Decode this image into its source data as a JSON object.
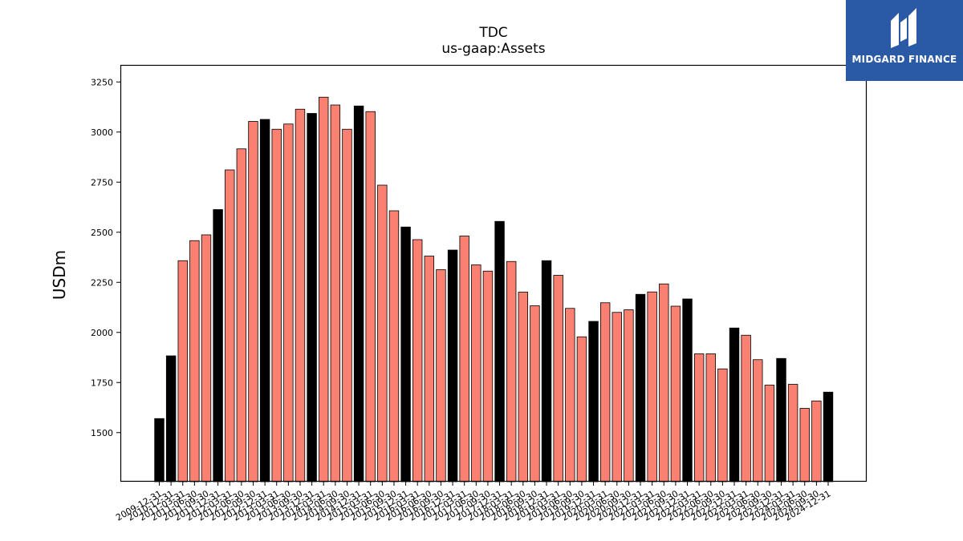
{
  "logo": {
    "text": "MIDGARD FINANCE"
  },
  "colors": {
    "highlight": "#000000",
    "normal": "#fa8072",
    "edge": "#000000"
  },
  "chart_data": {
    "type": "bar",
    "title": "TDC",
    "subtitle": "us-gaap:Assets",
    "ylabel": "USDm",
    "xlabel": "",
    "ylim": [
      1255,
      3335
    ],
    "yticks": [
      1500,
      1750,
      2000,
      2250,
      2500,
      2750,
      3000,
      3250
    ],
    "categories": [
      "2009-12-31",
      "2010-12-31",
      "2011-03-31",
      "2011-06-30",
      "2011-09-30",
      "2011-12-31",
      "2012-03-31",
      "2012-06-30",
      "2012-09-30",
      "2012-12-31",
      "2013-03-31",
      "2013-06-30",
      "2013-09-30",
      "2013-12-31",
      "2014-03-31",
      "2014-06-30",
      "2014-09-30",
      "2014-12-31",
      "2015-03-31",
      "2015-06-30",
      "2015-09-30",
      "2015-12-31",
      "2016-03-31",
      "2016-06-30",
      "2016-09-30",
      "2016-12-31",
      "2017-03-31",
      "2017-06-30",
      "2017-09-30",
      "2017-12-31",
      "2018-03-31",
      "2018-06-30",
      "2018-09-30",
      "2018-12-31",
      "2019-03-31",
      "2019-06-30",
      "2019-09-30",
      "2019-12-31",
      "2020-03-31",
      "2020-06-30",
      "2020-09-30",
      "2020-12-31",
      "2021-03-31",
      "2021-06-30",
      "2021-09-30",
      "2021-12-31",
      "2022-03-31",
      "2022-06-30",
      "2022-09-30",
      "2022-12-31",
      "2023-03-31",
      "2023-06-30",
      "2023-09-30",
      "2023-12-31",
      "2024-03-31",
      "2024-06-30",
      "2024-09-30",
      "2024-12-31"
    ],
    "values": [
      1570,
      1883,
      2358,
      2458,
      2487,
      2613,
      2811,
      2916,
      3053,
      3063,
      3014,
      3040,
      3114,
      3093,
      3174,
      3135,
      3014,
      3130,
      3102,
      2735,
      2607,
      2526,
      2463,
      2381,
      2313,
      2411,
      2481,
      2337,
      2306,
      2554,
      2354,
      2201,
      2133,
      2358,
      2285,
      2120,
      1978,
      2055,
      2148,
      2100,
      2113,
      2190,
      2202,
      2242,
      2131,
      2167,
      1893,
      1893,
      1818,
      2022,
      1986,
      1864,
      1737,
      1870,
      1741,
      1621,
      1658,
      1702
    ],
    "highlight_flags": [
      true,
      true,
      false,
      false,
      false,
      true,
      false,
      false,
      false,
      true,
      false,
      false,
      false,
      true,
      false,
      false,
      false,
      true,
      false,
      false,
      false,
      true,
      false,
      false,
      false,
      true,
      false,
      false,
      false,
      true,
      false,
      false,
      false,
      true,
      false,
      false,
      false,
      true,
      false,
      false,
      false,
      true,
      false,
      false,
      false,
      true,
      false,
      false,
      false,
      true,
      false,
      false,
      false,
      true,
      false,
      false,
      false,
      true
    ]
  }
}
